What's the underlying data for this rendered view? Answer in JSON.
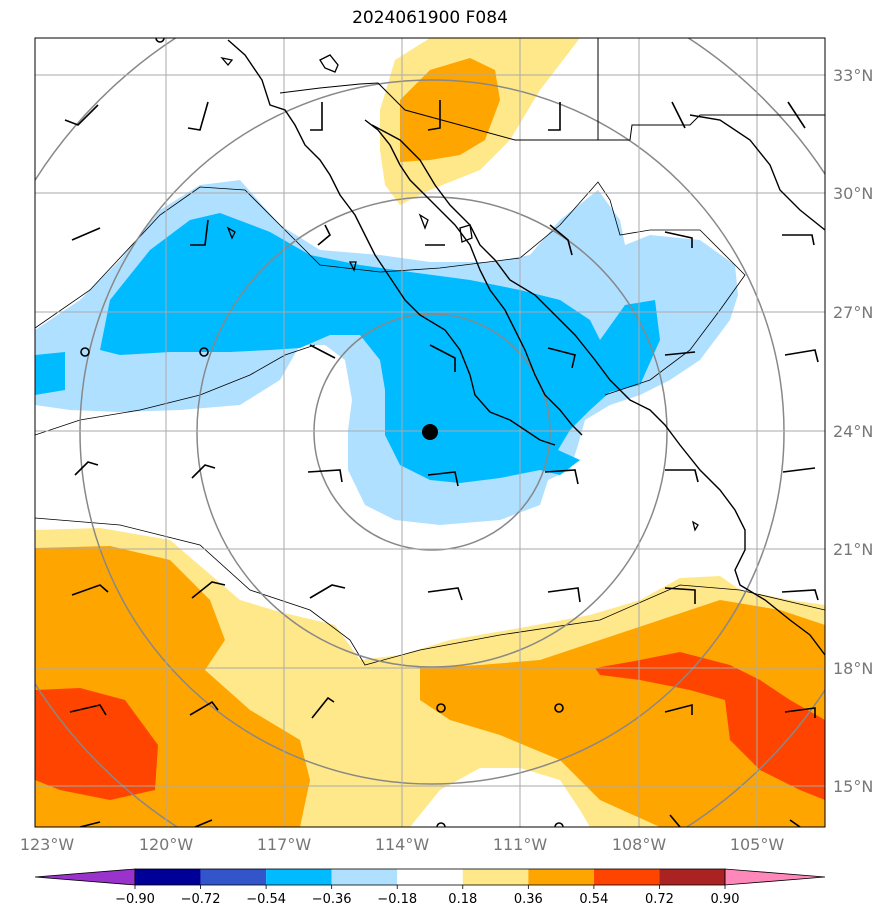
{
  "title": "2024061900 F084",
  "lat_labels": [
    "33°N",
    "30°N",
    "27°N",
    "24°N",
    "21°N",
    "18°N",
    "15°N"
  ],
  "lon_labels": [
    "123°W",
    "120°W",
    "117°W",
    "114°W",
    "111°W",
    "108°W",
    "105°W"
  ],
  "colorbar": {
    "ticks": [
      "−0.90",
      "−0.72",
      "−0.54",
      "−0.36",
      "−0.18",
      "0.18",
      "0.36",
      "0.54",
      "0.72",
      "0.90"
    ],
    "colors": [
      "#9933cc",
      "#000099",
      "#3355cc",
      "#00bbff",
      "#b0e0ff",
      "#ffffff",
      "#ffe88a",
      "#ffa500",
      "#ff4400",
      "#aa2222",
      "#ff88bb"
    ]
  },
  "fill_colors": {
    "light_blue": "#b0e0ff",
    "blue": "#00bbff",
    "yellow": "#ffe88a",
    "orange": "#ffa500",
    "red": "#ff4400"
  },
  "storm_center_marker": "black-dot"
}
